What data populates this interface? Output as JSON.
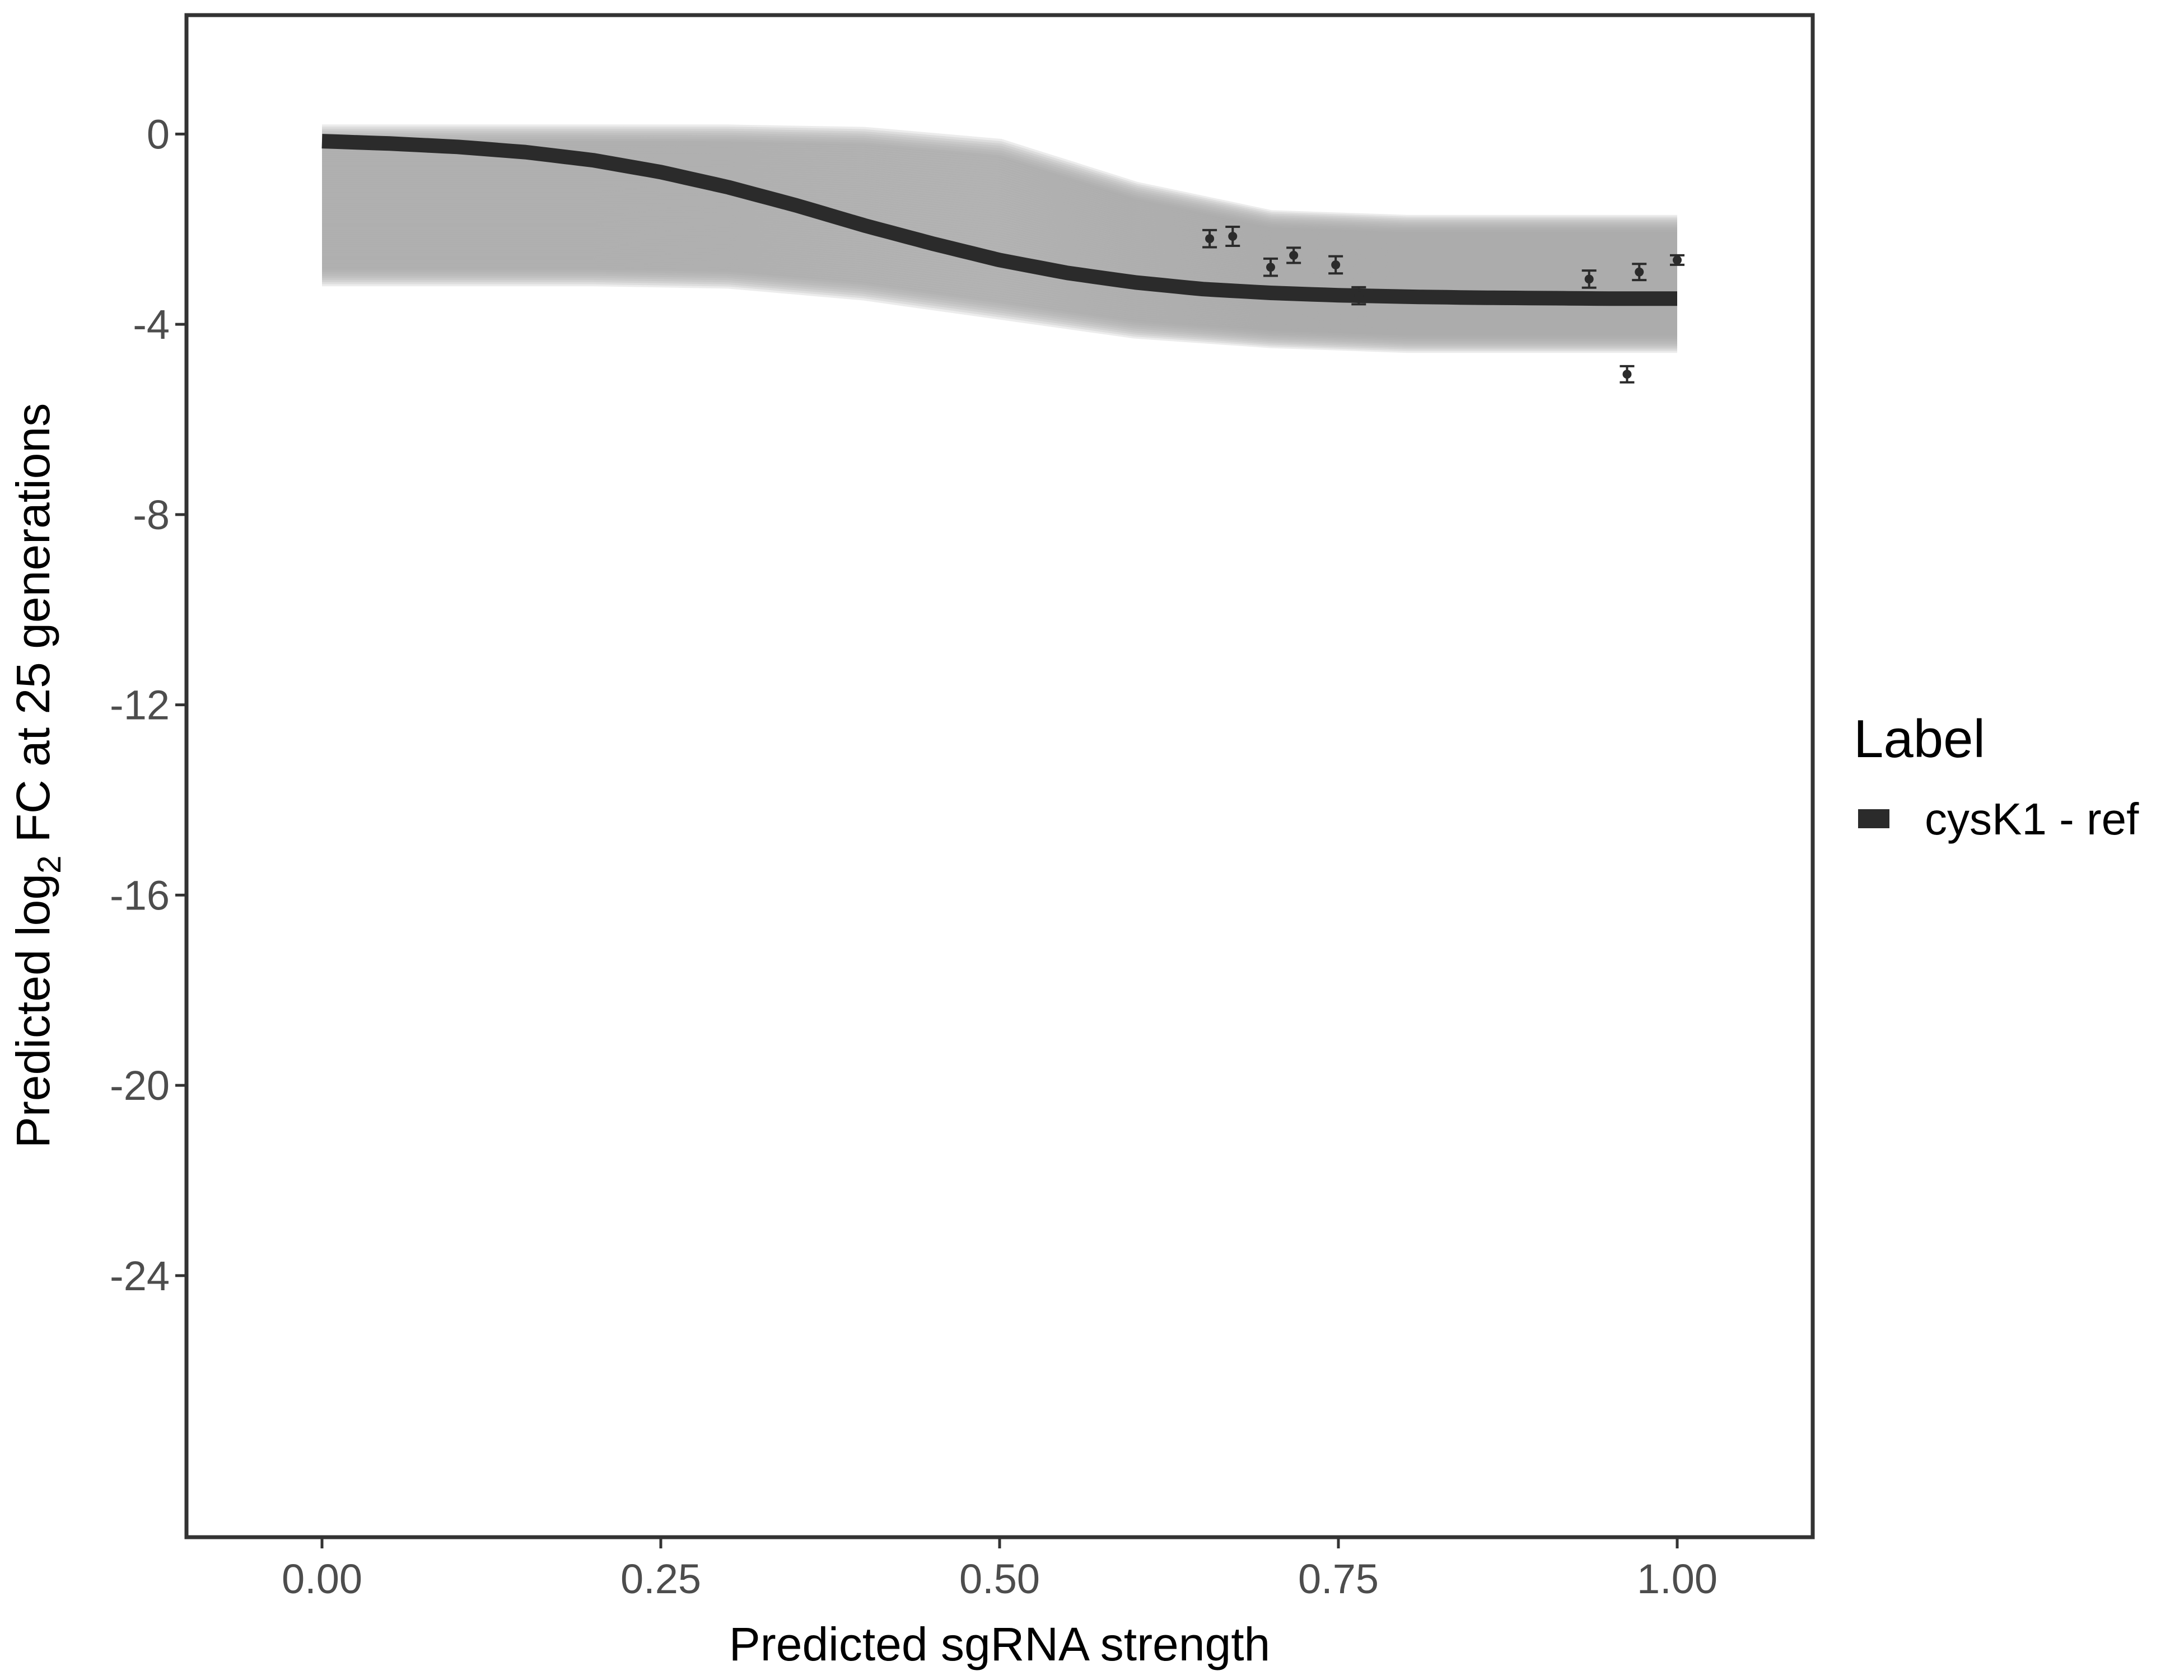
{
  "chart_data": {
    "type": "line",
    "xlabel": "Predicted sgRNA strength",
    "ylabel_parts": [
      "Predicted  log",
      "2",
      " FC at 25 generations"
    ],
    "xlim": [
      -0.1,
      1.1
    ],
    "ylim": [
      -29.5,
      2.5
    ],
    "x_ticks": [
      0,
      0.25,
      0.5,
      0.75,
      1
    ],
    "x_tick_labels": [
      "0.00",
      "0.25",
      "0.50",
      "0.75",
      "1.00"
    ],
    "y_ticks": [
      0,
      -4,
      -8,
      -12,
      -16,
      -20,
      -24
    ],
    "y_tick_labels": [
      "0",
      "-4",
      "-8",
      "-12",
      "-16",
      "-20",
      "-24"
    ],
    "grid": false,
    "legend": {
      "title": "Label",
      "position": "right",
      "entries": [
        "cysK1 - ref"
      ]
    },
    "colors": {
      "fit": "#2b2b2b",
      "samples": "#a8a8a8",
      "points": "#2b2b2b",
      "frame": "#333333"
    },
    "fit_curve": {
      "name": "cysK1 - ref",
      "x": [
        0,
        0.05,
        0.1,
        0.15,
        0.2,
        0.25,
        0.3,
        0.35,
        0.4,
        0.45,
        0.5,
        0.55,
        0.6,
        0.65,
        0.7,
        0.75,
        0.8,
        0.85,
        0.9,
        0.95,
        1.0
      ],
      "y": [
        -0.15,
        -0.2,
        -0.27,
        -0.38,
        -0.55,
        -0.8,
        -1.12,
        -1.5,
        -1.92,
        -2.3,
        -2.65,
        -2.92,
        -3.12,
        -3.26,
        -3.34,
        -3.39,
        -3.42,
        -3.44,
        -3.45,
        -3.46,
        -3.46
      ]
    },
    "posterior_band": {
      "x": [
        0,
        0.1,
        0.2,
        0.3,
        0.4,
        0.5,
        0.6,
        0.7,
        0.8,
        0.9,
        1.0
      ],
      "upper": [
        0,
        0,
        0,
        0,
        -0.05,
        -0.3,
        -1.2,
        -1.8,
        -1.9,
        -1.9,
        -1.9
      ],
      "lower": [
        -3.0,
        -3.0,
        -3.0,
        -3.05,
        -3.3,
        -3.7,
        -4.1,
        -4.3,
        -4.4,
        -4.4,
        -4.4
      ]
    },
    "points": [
      {
        "x": 0.655,
        "y": -2.2,
        "err": 0.18
      },
      {
        "x": 0.672,
        "y": -2.15,
        "err": 0.2
      },
      {
        "x": 0.7,
        "y": -2.8,
        "err": 0.18
      },
      {
        "x": 0.717,
        "y": -2.55,
        "err": 0.16
      },
      {
        "x": 0.748,
        "y": -2.75,
        "err": 0.18
      },
      {
        "x": 0.765,
        "y": -3.4,
        "err": 0.18
      },
      {
        "x": 0.935,
        "y": -3.05,
        "err": 0.18
      },
      {
        "x": 0.963,
        "y": -5.05,
        "err": 0.17
      },
      {
        "x": 0.972,
        "y": -2.9,
        "err": 0.17
      },
      {
        "x": 1.0,
        "y": -2.65,
        "err": 0.1
      }
    ]
  }
}
